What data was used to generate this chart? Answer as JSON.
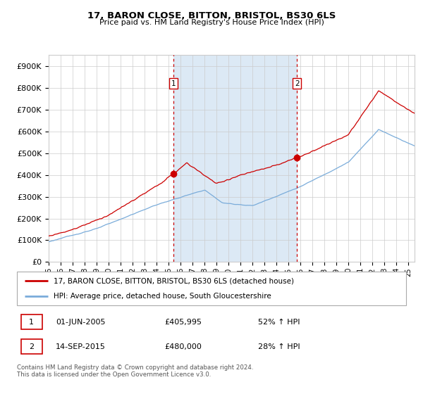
{
  "title": "17, BARON CLOSE, BITTON, BRISTOL, BS30 6LS",
  "subtitle": "Price paid vs. HM Land Registry's House Price Index (HPI)",
  "legend_line1": "17, BARON CLOSE, BITTON, BRISTOL, BS30 6LS (detached house)",
  "legend_line2": "HPI: Average price, detached house, South Gloucestershire",
  "annotation1_date": "01-JUN-2005",
  "annotation1_price": "£405,995",
  "annotation1_hpi": "52% ↑ HPI",
  "annotation2_date": "14-SEP-2015",
  "annotation2_price": "£480,000",
  "annotation2_hpi": "28% ↑ HPI",
  "footnote": "Contains HM Land Registry data © Crown copyright and database right 2024.\nThis data is licensed under the Open Government Licence v3.0.",
  "red_color": "#cc0000",
  "blue_color": "#7aacda",
  "shade_color": "#dce9f5",
  "background_color": "#ffffff",
  "grid_color": "#cccccc",
  "ylim": [
    0,
    950000
  ],
  "yticks": [
    0,
    100000,
    200000,
    300000,
    400000,
    500000,
    600000,
    700000,
    800000,
    900000
  ],
  "start_year": 1995,
  "end_year": 2025,
  "sale1_year": 2005.42,
  "sale1_value": 405995,
  "sale2_year": 2015.71,
  "sale2_value": 480000
}
